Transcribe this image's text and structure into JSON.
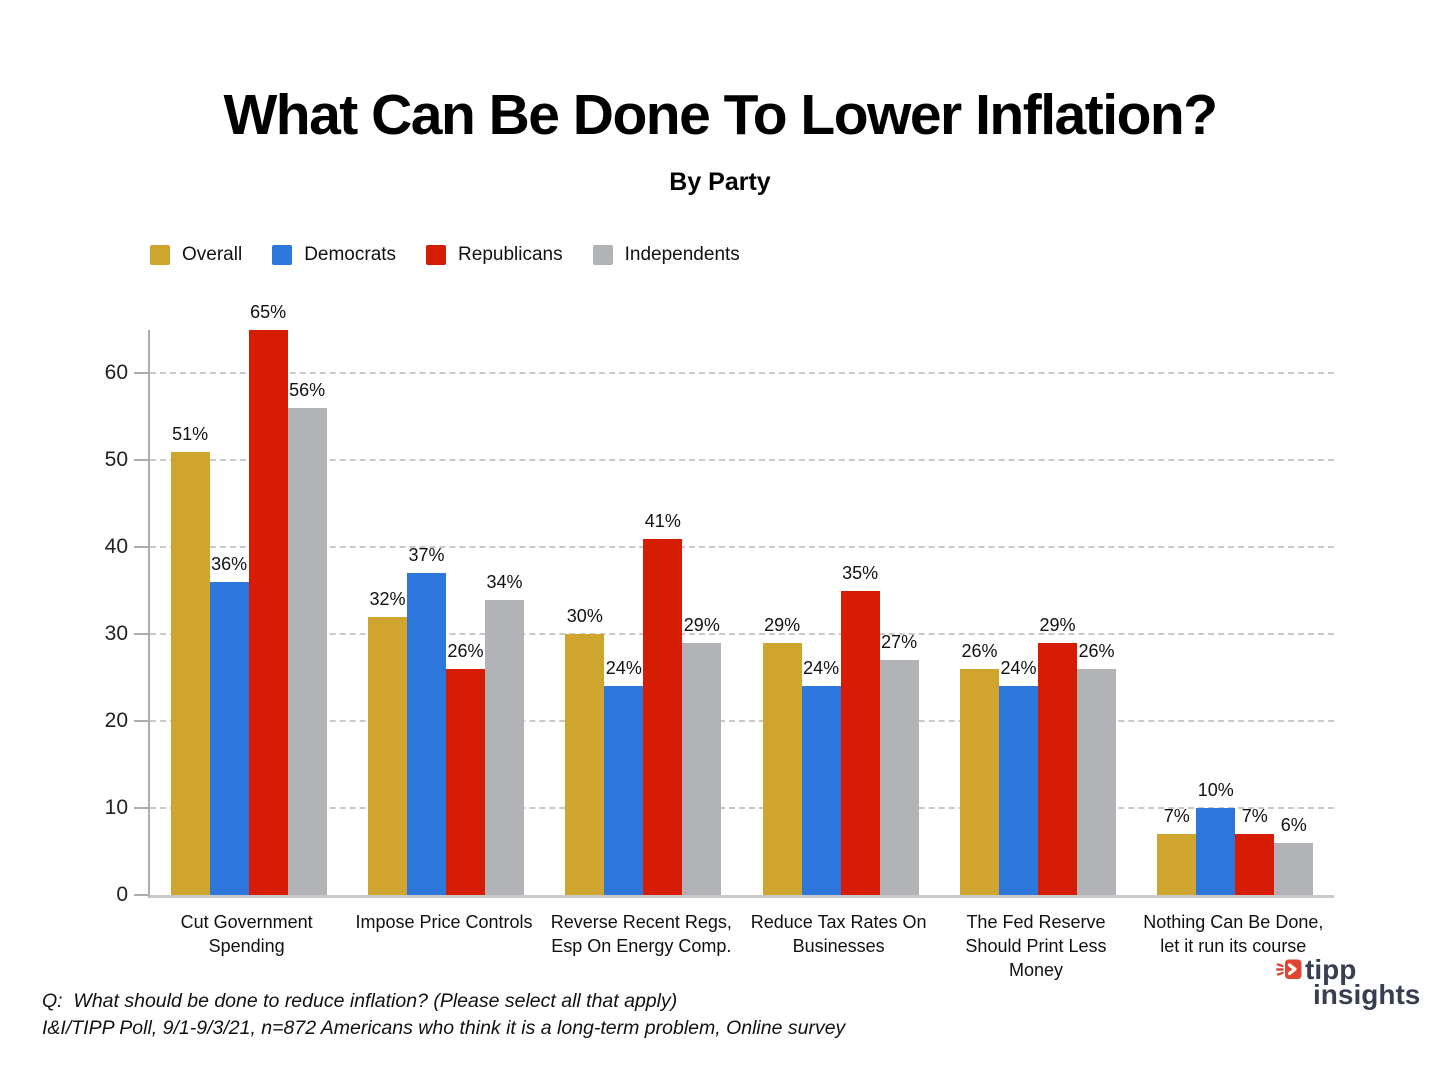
{
  "chart_data": {
    "type": "bar",
    "title": "What Can Be Done To Lower Inflation?",
    "subtitle": "By Party",
    "categories": [
      "Cut Government Spending",
      "Impose Price Controls",
      "Reverse Recent Regs, Esp On Energy Comp.",
      "Reduce Tax Rates On Businesses",
      "The Fed Reserve Should Print Less Money",
      "Nothing Can Be Done, let it run its course"
    ],
    "category_label_lines": [
      [
        "Cut Government",
        "Spending"
      ],
      [
        "Impose Price Controls"
      ],
      [
        "Reverse Recent Regs,",
        "Esp On Energy Comp."
      ],
      [
        "Reduce Tax Rates On",
        "Businesses"
      ],
      [
        "The Fed Reserve",
        "Should Print Less",
        "Money"
      ],
      [
        "Nothing Can Be Done,",
        "let it run its course"
      ]
    ],
    "series": [
      {
        "name": "Overall",
        "color": "#D0A52E",
        "values": [
          51,
          32,
          30,
          29,
          26,
          7
        ]
      },
      {
        "name": "Democrats",
        "color": "#2D76DC",
        "values": [
          36,
          37,
          24,
          24,
          24,
          10
        ]
      },
      {
        "name": "Republicans",
        "color": "#D71C04",
        "values": [
          65,
          26,
          41,
          35,
          29,
          7
        ]
      },
      {
        "name": "Independents",
        "color": "#B2B3B6",
        "values": [
          56,
          34,
          29,
          27,
          26,
          6
        ]
      }
    ],
    "value_suffix": "%",
    "xlabel": "",
    "ylabel": "",
    "ylim": [
      0,
      65
    ],
    "y_ticks": [
      0,
      10,
      20,
      30,
      40,
      50,
      60
    ],
    "grid": "horizontal-dashed",
    "legend_position": "top-left"
  },
  "footnote": {
    "line1": "Q:  What should be done to reduce inflation? (Please select all that apply)",
    "line2": "I&I/TIPP Poll, 9/1-9/3/21, n=872 Americans who think it is a long-term problem, Online survey"
  },
  "logo": {
    "line1": "tipp",
    "line2": "insights",
    "text_color": "#3A3E53",
    "icon_color": "#E04434"
  }
}
